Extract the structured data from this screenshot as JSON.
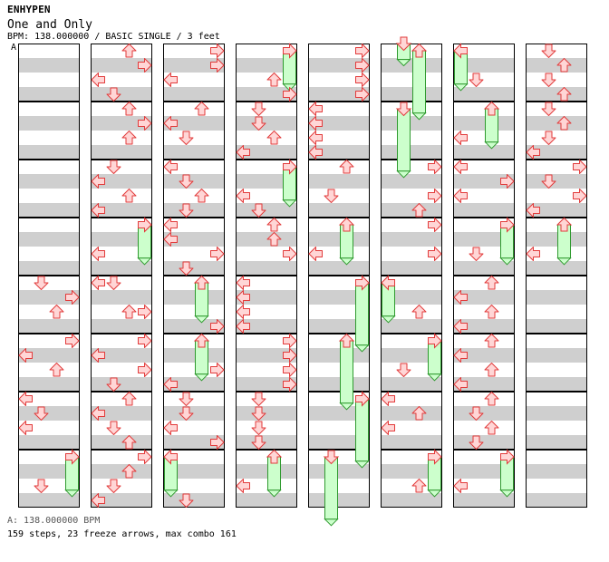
{
  "header": {
    "artist": "ENHYPEN",
    "title": "One and Only",
    "meta": "BPM: 138.000000 / BASIC SINGLE / 3 feet",
    "bpm_marker": "A"
  },
  "footer": {
    "bpm_legend": "A: 138.000000 BPM",
    "stats": "159 steps, 23 freeze arrows, max combo 161"
  },
  "colors": {
    "stripe": "#cfcfcf",
    "arrow_fill": "#ffd6d6",
    "arrow_stroke": "#e23b3b",
    "freeze_fill": "#ccffcc",
    "freeze_stroke": "#2f9a2f"
  },
  "chart": {
    "columns": 8,
    "measures_per_column": 8,
    "lanes": [
      "left",
      "down",
      "up",
      "right"
    ],
    "steps": [
      {
        "c": 1,
        "m": 0,
        "b": 0,
        "l": 2
      },
      {
        "c": 1,
        "m": 0,
        "b": 1,
        "l": 3
      },
      {
        "c": 1,
        "m": 0,
        "b": 2,
        "l": 0
      },
      {
        "c": 1,
        "m": 0,
        "b": 3,
        "l": 1
      },
      {
        "c": 1,
        "m": 1,
        "b": 0,
        "l": 2
      },
      {
        "c": 1,
        "m": 1,
        "b": 1,
        "l": 3
      },
      {
        "c": 1,
        "m": 1,
        "b": 2,
        "l": 2
      },
      {
        "c": 1,
        "m": 2,
        "b": 0,
        "l": 1
      },
      {
        "c": 1,
        "m": 2,
        "b": 1,
        "l": 0
      },
      {
        "c": 1,
        "m": 2,
        "b": 2,
        "l": 2
      },
      {
        "c": 1,
        "m": 2,
        "b": 3,
        "l": 0
      },
      {
        "c": 1,
        "m": 3,
        "b": 0,
        "l": 3
      },
      {
        "c": 1,
        "m": 3,
        "b": 2,
        "l": 0
      },
      {
        "c": 1,
        "m": 4,
        "b": 0,
        "l": 0
      },
      {
        "c": 1,
        "m": 4,
        "b": 0,
        "l": 1
      },
      {
        "c": 1,
        "m": 4,
        "b": 2,
        "l": 2
      },
      {
        "c": 1,
        "m": 4,
        "b": 2,
        "l": 3
      },
      {
        "c": 1,
        "m": 5,
        "b": 0,
        "l": 3
      },
      {
        "c": 1,
        "m": 5,
        "b": 1,
        "l": 0
      },
      {
        "c": 1,
        "m": 5,
        "b": 2,
        "l": 3
      },
      {
        "c": 1,
        "m": 5,
        "b": 3,
        "l": 1
      },
      {
        "c": 1,
        "m": 6,
        "b": 0,
        "l": 2
      },
      {
        "c": 1,
        "m": 6,
        "b": 1,
        "l": 0
      },
      {
        "c": 1,
        "m": 6,
        "b": 2,
        "l": 1
      },
      {
        "c": 1,
        "m": 6,
        "b": 3,
        "l": 2
      },
      {
        "c": 1,
        "m": 7,
        "b": 0,
        "l": 3
      },
      {
        "c": 1,
        "m": 7,
        "b": 1,
        "l": 2
      },
      {
        "c": 1,
        "m": 7,
        "b": 2,
        "l": 1
      },
      {
        "c": 1,
        "m": 7,
        "b": 3,
        "l": 0
      },
      {
        "c": 0,
        "m": 4,
        "b": 0,
        "l": 1
      },
      {
        "c": 0,
        "m": 4,
        "b": 1,
        "l": 3
      },
      {
        "c": 0,
        "m": 4,
        "b": 2,
        "l": 2
      },
      {
        "c": 0,
        "m": 5,
        "b": 0,
        "l": 3
      },
      {
        "c": 0,
        "m": 5,
        "b": 1,
        "l": 0
      },
      {
        "c": 0,
        "m": 5,
        "b": 2,
        "l": 2
      },
      {
        "c": 0,
        "m": 6,
        "b": 0,
        "l": 0
      },
      {
        "c": 0,
        "m": 6,
        "b": 1,
        "l": 1
      },
      {
        "c": 0,
        "m": 6,
        "b": 2,
        "l": 0
      },
      {
        "c": 0,
        "m": 7,
        "b": 2,
        "l": 1
      },
      {
        "c": 2,
        "m": 0,
        "b": 0,
        "l": 3
      },
      {
        "c": 2,
        "m": 0,
        "b": 1,
        "l": 3
      },
      {
        "c": 2,
        "m": 0,
        "b": 2,
        "l": 0
      },
      {
        "c": 2,
        "m": 1,
        "b": 0,
        "l": 2
      },
      {
        "c": 2,
        "m": 1,
        "b": 1,
        "l": 0
      },
      {
        "c": 2,
        "m": 1,
        "b": 2,
        "l": 1
      },
      {
        "c": 2,
        "m": 2,
        "b": 0,
        "l": 0
      },
      {
        "c": 2,
        "m": 2,
        "b": 1,
        "l": 1
      },
      {
        "c": 2,
        "m": 2,
        "b": 2,
        "l": 2
      },
      {
        "c": 2,
        "m": 2,
        "b": 3,
        "l": 1
      },
      {
        "c": 2,
        "m": 3,
        "b": 0,
        "l": 0
      },
      {
        "c": 2,
        "m": 3,
        "b": 1,
        "l": 0
      },
      {
        "c": 2,
        "m": 3,
        "b": 2,
        "l": 3
      },
      {
        "c": 2,
        "m": 3,
        "b": 3,
        "l": 1
      },
      {
        "c": 2,
        "m": 4,
        "b": 3,
        "l": 3
      },
      {
        "c": 2,
        "m": 5,
        "b": 2,
        "l": 3
      },
      {
        "c": 2,
        "m": 5,
        "b": 3,
        "l": 0
      },
      {
        "c": 2,
        "m": 6,
        "b": 0,
        "l": 1
      },
      {
        "c": 2,
        "m": 6,
        "b": 1,
        "l": 1
      },
      {
        "c": 2,
        "m": 6,
        "b": 2,
        "l": 0
      },
      {
        "c": 2,
        "m": 6,
        "b": 3,
        "l": 3
      },
      {
        "c": 2,
        "m": 7,
        "b": 3,
        "l": 1
      },
      {
        "c": 3,
        "m": 0,
        "b": 2,
        "l": 2
      },
      {
        "c": 3,
        "m": 0,
        "b": 3,
        "l": 3
      },
      {
        "c": 3,
        "m": 1,
        "b": 0,
        "l": 1
      },
      {
        "c": 3,
        "m": 1,
        "b": 1,
        "l": 1
      },
      {
        "c": 3,
        "m": 1,
        "b": 2,
        "l": 2
      },
      {
        "c": 3,
        "m": 1,
        "b": 3,
        "l": 0
      },
      {
        "c": 3,
        "m": 2,
        "b": 2,
        "l": 0
      },
      {
        "c": 3,
        "m": 2,
        "b": 3,
        "l": 1
      },
      {
        "c": 3,
        "m": 3,
        "b": 0,
        "l": 2
      },
      {
        "c": 3,
        "m": 3,
        "b": 1,
        "l": 2
      },
      {
        "c": 3,
        "m": 3,
        "b": 2,
        "l": 3
      },
      {
        "c": 3,
        "m": 4,
        "b": 0,
        "l": 0
      },
      {
        "c": 3,
        "m": 4,
        "b": 1,
        "l": 0
      },
      {
        "c": 3,
        "m": 4,
        "b": 2,
        "l": 0
      },
      {
        "c": 3,
        "m": 4,
        "b": 3,
        "l": 0
      },
      {
        "c": 3,
        "m": 5,
        "b": 0,
        "l": 3
      },
      {
        "c": 3,
        "m": 5,
        "b": 1,
        "l": 3
      },
      {
        "c": 3,
        "m": 5,
        "b": 2,
        "l": 3
      },
      {
        "c": 3,
        "m": 5,
        "b": 3,
        "l": 3
      },
      {
        "c": 3,
        "m": 6,
        "b": 0,
        "l": 1
      },
      {
        "c": 3,
        "m": 6,
        "b": 1,
        "l": 1
      },
      {
        "c": 3,
        "m": 6,
        "b": 2,
        "l": 1
      },
      {
        "c": 3,
        "m": 6,
        "b": 3,
        "l": 1
      },
      {
        "c": 3,
        "m": 7,
        "b": 2,
        "l": 0
      },
      {
        "c": 4,
        "m": 0,
        "b": 0,
        "l": 3
      },
      {
        "c": 4,
        "m": 0,
        "b": 1,
        "l": 3
      },
      {
        "c": 4,
        "m": 0,
        "b": 2,
        "l": 3
      },
      {
        "c": 4,
        "m": 0,
        "b": 3,
        "l": 3
      },
      {
        "c": 4,
        "m": 1,
        "b": 0,
        "l": 0
      },
      {
        "c": 4,
        "m": 1,
        "b": 1,
        "l": 0
      },
      {
        "c": 4,
        "m": 1,
        "b": 2,
        "l": 0
      },
      {
        "c": 4,
        "m": 1,
        "b": 3,
        "l": 0
      },
      {
        "c": 4,
        "m": 2,
        "b": 0,
        "l": 2
      },
      {
        "c": 4,
        "m": 2,
        "b": 2,
        "l": 1
      },
      {
        "c": 4,
        "m": 3,
        "b": 2,
        "l": 0
      },
      {
        "c": 5,
        "m": 2,
        "b": 0,
        "l": 3
      },
      {
        "c": 5,
        "m": 2,
        "b": 2,
        "l": 3
      },
      {
        "c": 5,
        "m": 2,
        "b": 3,
        "l": 2
      },
      {
        "c": 5,
        "m": 3,
        "b": 0,
        "l": 3
      },
      {
        "c": 5,
        "m": 3,
        "b": 2,
        "l": 3
      },
      {
        "c": 5,
        "m": 4,
        "b": 2,
        "l": 2
      },
      {
        "c": 5,
        "m": 5,
        "b": 2,
        "l": 1
      },
      {
        "c": 5,
        "m": 6,
        "b": 0,
        "l": 0
      },
      {
        "c": 5,
        "m": 6,
        "b": 1,
        "l": 2
      },
      {
        "c": 5,
        "m": 6,
        "b": 2,
        "l": 0
      },
      {
        "c": 5,
        "m": 7,
        "b": 2,
        "l": 2
      },
      {
        "c": 6,
        "m": 0,
        "b": 2,
        "l": 1
      },
      {
        "c": 6,
        "m": 1,
        "b": 2,
        "l": 0
      },
      {
        "c": 6,
        "m": 2,
        "b": 0,
        "l": 0
      },
      {
        "c": 6,
        "m": 2,
        "b": 1,
        "l": 3
      },
      {
        "c": 6,
        "m": 2,
        "b": 2,
        "l": 0
      },
      {
        "c": 6,
        "m": 3,
        "b": 2,
        "l": 1
      },
      {
        "c": 6,
        "m": 4,
        "b": 0,
        "l": 2
      },
      {
        "c": 6,
        "m": 4,
        "b": 1,
        "l": 0
      },
      {
        "c": 6,
        "m": 4,
        "b": 2,
        "l": 2
      },
      {
        "c": 6,
        "m": 4,
        "b": 3,
        "l": 0
      },
      {
        "c": 6,
        "m": 5,
        "b": 0,
        "l": 2
      },
      {
        "c": 6,
        "m": 5,
        "b": 1,
        "l": 0
      },
      {
        "c": 6,
        "m": 5,
        "b": 2,
        "l": 2
      },
      {
        "c": 6,
        "m": 5,
        "b": 3,
        "l": 0
      },
      {
        "c": 6,
        "m": 6,
        "b": 0,
        "l": 2
      },
      {
        "c": 6,
        "m": 6,
        "b": 1,
        "l": 1
      },
      {
        "c": 6,
        "m": 6,
        "b": 2,
        "l": 2
      },
      {
        "c": 6,
        "m": 6,
        "b": 3,
        "l": 1
      },
      {
        "c": 6,
        "m": 7,
        "b": 2,
        "l": 0
      },
      {
        "c": 7,
        "m": 0,
        "b": 0,
        "l": 1
      },
      {
        "c": 7,
        "m": 0,
        "b": 1,
        "l": 2
      },
      {
        "c": 7,
        "m": 0,
        "b": 2,
        "l": 1
      },
      {
        "c": 7,
        "m": 0,
        "b": 3,
        "l": 2
      },
      {
        "c": 7,
        "m": 1,
        "b": 0,
        "l": 1
      },
      {
        "c": 7,
        "m": 1,
        "b": 1,
        "l": 2
      },
      {
        "c": 7,
        "m": 1,
        "b": 2,
        "l": 1
      },
      {
        "c": 7,
        "m": 1,
        "b": 3,
        "l": 0
      },
      {
        "c": 7,
        "m": 2,
        "b": 0,
        "l": 3
      },
      {
        "c": 7,
        "m": 2,
        "b": 1,
        "l": 1
      },
      {
        "c": 7,
        "m": 2,
        "b": 2,
        "l": 3
      },
      {
        "c": 7,
        "m": 2,
        "b": 3,
        "l": 0
      },
      {
        "c": 7,
        "m": 3,
        "b": 2,
        "l": 0
      }
    ],
    "freezes": [
      {
        "c": 0,
        "m": 7,
        "b0": 0,
        "b1": 2.3,
        "l": 3
      },
      {
        "c": 1,
        "m": 3,
        "b0": 0,
        "b1": 2.3,
        "l": 3
      },
      {
        "c": 2,
        "m": 4,
        "b0": 0,
        "b1": 2.3,
        "l": 2
      },
      {
        "c": 2,
        "m": 5,
        "b0": 0,
        "b1": 2.3,
        "l": 2
      },
      {
        "c": 2,
        "m": 7,
        "b0": 0,
        "b1": 2.3,
        "l": 0
      },
      {
        "c": 3,
        "m": 0,
        "b0": 0,
        "b1": 2.3,
        "l": 3
      },
      {
        "c": 3,
        "m": 2,
        "b0": 0,
        "b1": 2.3,
        "l": 3
      },
      {
        "c": 3,
        "m": 7,
        "b0": 0,
        "b1": 2.3,
        "l": 2
      },
      {
        "c": 4,
        "m": 3,
        "b0": 0,
        "b1": 2.3,
        "l": 2
      },
      {
        "c": 4,
        "m": 4,
        "b0": 0,
        "b1": 4.3,
        "l": 3
      },
      {
        "c": 4,
        "m": 5,
        "b0": 0,
        "b1": 4.3,
        "l": 2
      },
      {
        "c": 4,
        "m": 6,
        "b0": 0,
        "b1": 4.3,
        "l": 3
      },
      {
        "c": 4,
        "m": 7,
        "b0": 0,
        "b1": 4.3,
        "l": 1
      },
      {
        "c": 5,
        "m": 0,
        "b0": -0.5,
        "b1": 0.6,
        "l": 1
      },
      {
        "c": 5,
        "m": 0,
        "b0": 0,
        "b1": 4.3,
        "l": 2
      },
      {
        "c": 5,
        "m": 1,
        "b0": 0,
        "b1": 4.3,
        "l": 1
      },
      {
        "c": 5,
        "m": 4,
        "b0": 0,
        "b1": 2.3,
        "l": 0
      },
      {
        "c": 5,
        "m": 5,
        "b0": 0,
        "b1": 2.3,
        "l": 3
      },
      {
        "c": 5,
        "m": 7,
        "b0": 0,
        "b1": 2.3,
        "l": 3
      },
      {
        "c": 6,
        "m": 0,
        "b0": 0,
        "b1": 2.3,
        "l": 0
      },
      {
        "c": 6,
        "m": 1,
        "b0": 0,
        "b1": 2.3,
        "l": 2
      },
      {
        "c": 6,
        "m": 3,
        "b0": 0,
        "b1": 2.3,
        "l": 3
      },
      {
        "c": 6,
        "m": 7,
        "b0": 0,
        "b1": 2.3,
        "l": 3
      },
      {
        "c": 7,
        "m": 3,
        "b0": 0,
        "b1": 2.3,
        "l": 2
      }
    ]
  }
}
